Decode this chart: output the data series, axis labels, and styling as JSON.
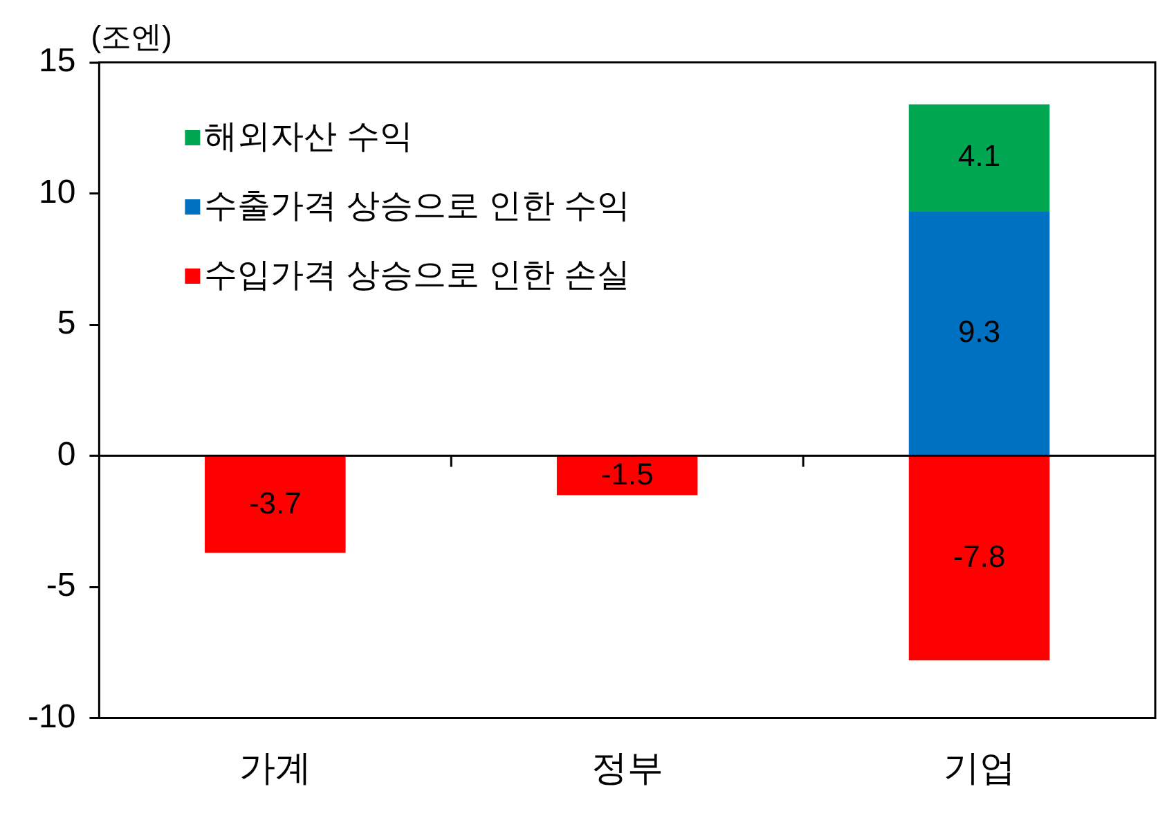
{
  "chart_data": {
    "type": "bar",
    "stacked": true,
    "ylabel": "(조엔)",
    "categories": [
      "가계",
      "정부",
      "기업"
    ],
    "series": [
      {
        "name": "수입가격 상승으로 인한 손실",
        "color": "#ff0000",
        "values": [
          -3.7,
          -1.5,
          -7.8
        ]
      },
      {
        "name": "수출가격 상승으로 인한 수익",
        "color": "#0070c0",
        "values": [
          null,
          null,
          9.3
        ]
      },
      {
        "name": "해외자산 수익",
        "color": "#00a651",
        "values": [
          null,
          null,
          4.1
        ]
      }
    ],
    "ylim": [
      -10,
      15
    ],
    "yticks": [
      -10,
      -5,
      0,
      5,
      10,
      15
    ],
    "grid": false,
    "ref_lines": [
      {
        "axis": "y",
        "value": 0
      }
    ],
    "legend": "top left",
    "data_labels": true
  }
}
